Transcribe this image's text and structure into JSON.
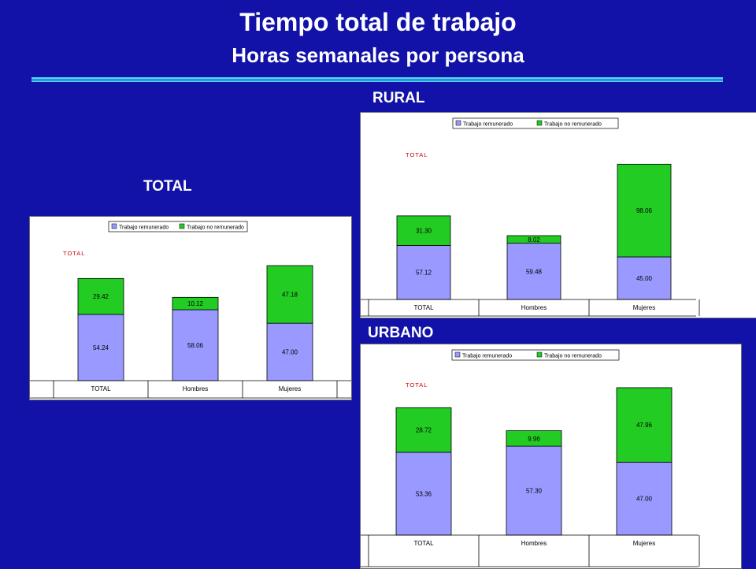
{
  "slide": {
    "title": "Tiempo total de trabajo",
    "subtitle": "Horas semanales por persona"
  },
  "sections": {
    "total": "TOTAL",
    "rural": "RURAL",
    "urbano": "URBANO"
  },
  "colors": {
    "background": "#1212a8",
    "accent_rule": "#49d6f5",
    "remunerado": "#9999ff",
    "no_remunerado": "#22cc22",
    "inner_title": "#cc0000"
  },
  "chart_data": [
    {
      "type": "bar",
      "stacked": true,
      "title": "TOTAL",
      "categories": [
        "TOTAL",
        "Hombres",
        "Mujeres"
      ],
      "series": [
        {
          "name": "Trabajo remunerado",
          "values": [
            54.24,
            58.06,
            47.0
          ]
        },
        {
          "name": "Trabajo no remunerado",
          "values": [
            29.42,
            10.12,
            47.18
          ]
        }
      ],
      "ylim": [
        0,
        100
      ],
      "grid": false,
      "legend": "top-right"
    },
    {
      "type": "bar",
      "stacked": true,
      "title": "TOTAL",
      "categories": [
        "TOTAL",
        "Hombres",
        "Mujeres"
      ],
      "series": [
        {
          "name": "Trabajo remunerado",
          "values": [
            57.12,
            59.48,
            45.0
          ]
        },
        {
          "name": "Trabajo no remunerado",
          "values": [
            31.3,
            8.02,
            98.06
          ]
        }
      ],
      "ylim": [
        0,
        150
      ],
      "grid": false,
      "legend": "top-right"
    },
    {
      "type": "bar",
      "stacked": true,
      "title": "TOTAL",
      "categories": [
        "TOTAL",
        "Hombres",
        "Mujeres"
      ],
      "series": [
        {
          "name": "Trabajo remunerado",
          "values": [
            53.36,
            57.3,
            47.0
          ]
        },
        {
          "name": "Trabajo no remunerado",
          "values": [
            28.72,
            9.96,
            47.96
          ]
        }
      ],
      "ylim": [
        0,
        100
      ],
      "grid": false,
      "legend": "top-right"
    }
  ]
}
